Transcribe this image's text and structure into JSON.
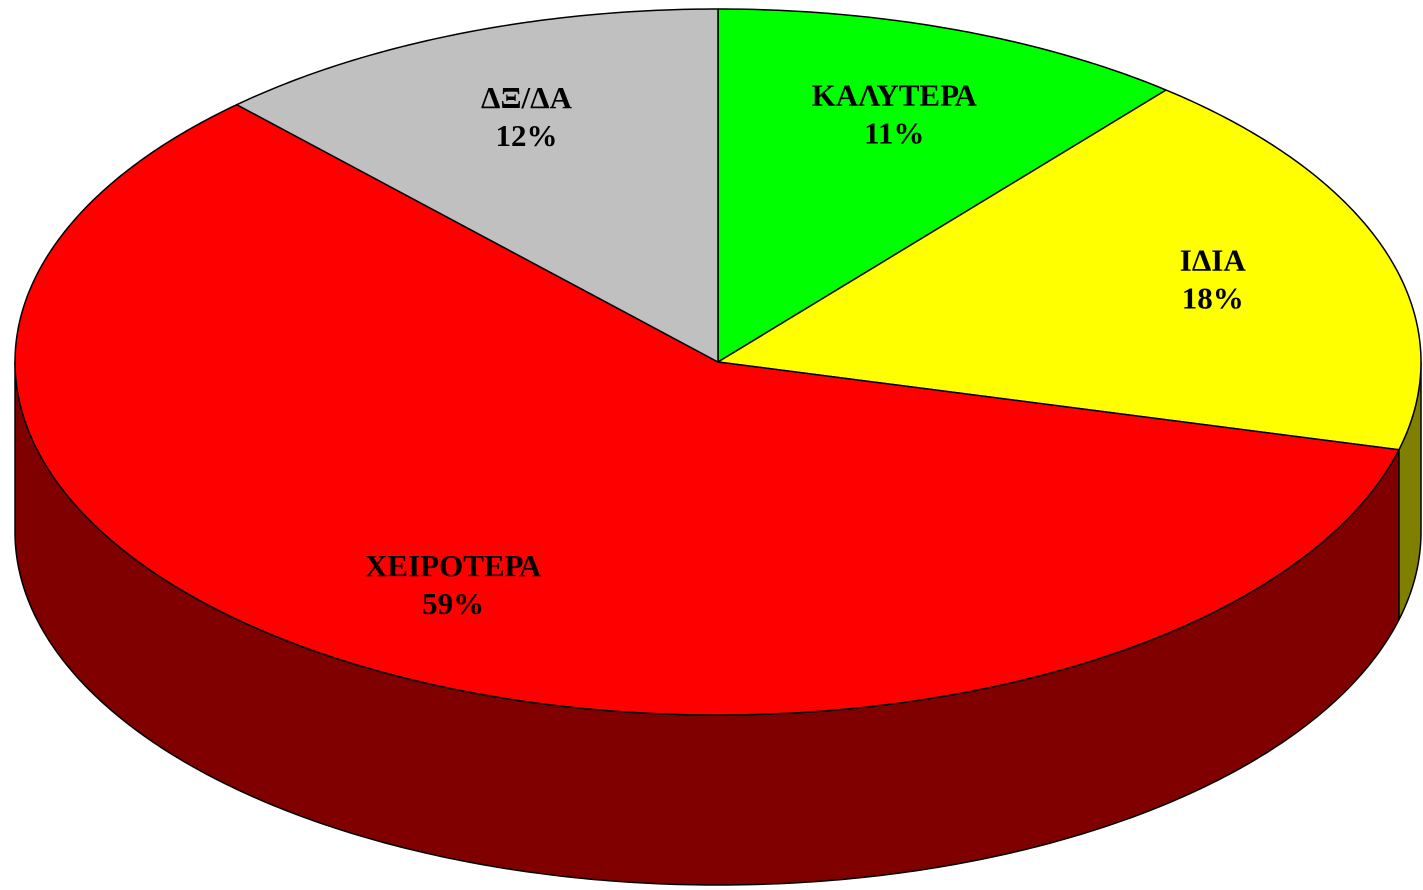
{
  "chart_data": {
    "type": "pie3d",
    "categories": [
      "ΚΑΛΥΤΕΡΑ",
      "ΙΔΙΑ",
      "ΧΕΙΡΟΤΕΡΑ",
      "ΔΞ/ΔΑ"
    ],
    "values": [
      11,
      18,
      59,
      12
    ],
    "value_labels": [
      "11%",
      "18%",
      "59%",
      "12%"
    ],
    "colors": [
      "#00ff00",
      "#ffff00",
      "#ff0000",
      "#c0c0c0"
    ]
  }
}
